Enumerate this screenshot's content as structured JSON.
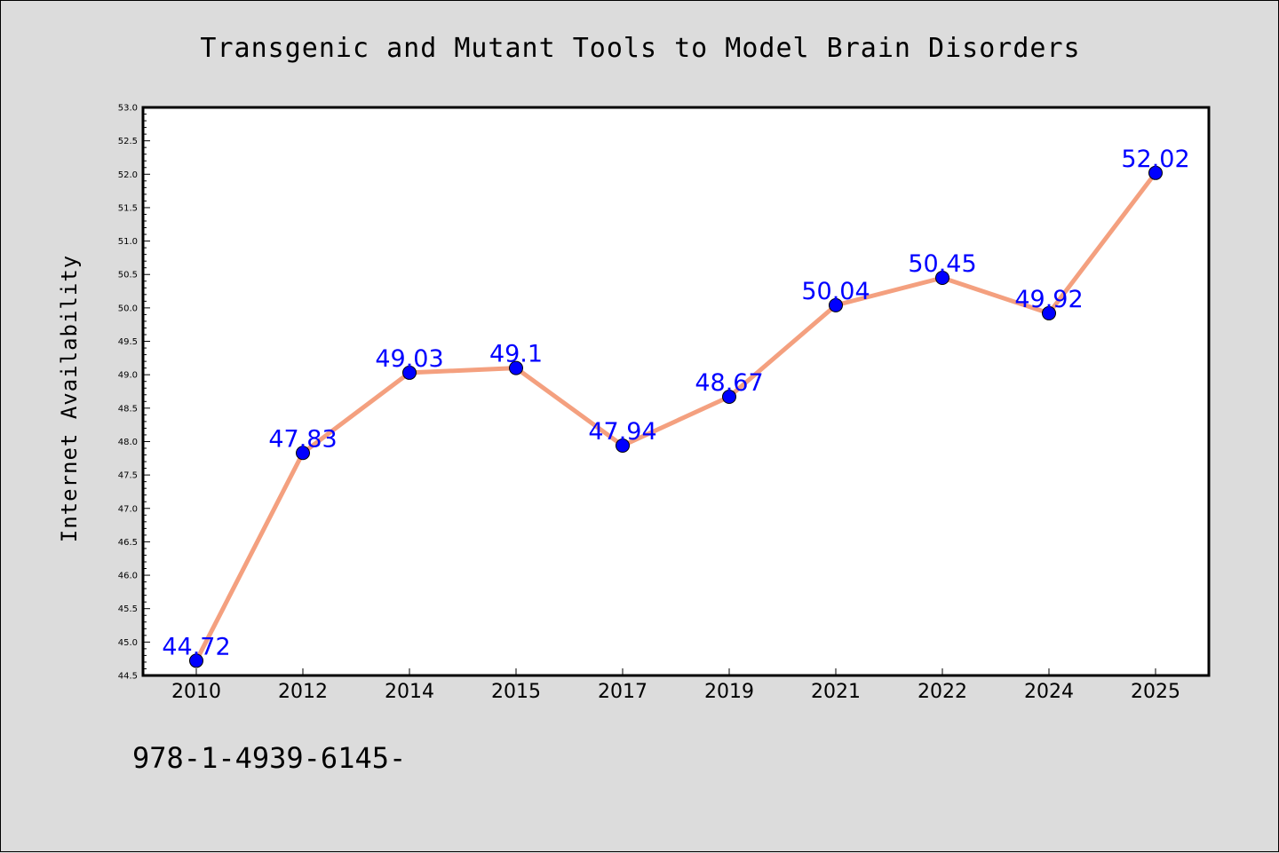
{
  "chart_data": {
    "type": "line",
    "title": "Transgenic and Mutant Tools to Model Brain Disorders",
    "xlabel": "",
    "ylabel": "Internet Availability",
    "categories": [
      "2010",
      "2012",
      "2014",
      "2015",
      "2017",
      "2019",
      "2021",
      "2022",
      "2024",
      "2025"
    ],
    "series": [
      {
        "values": [
          44.72,
          47.83,
          49.03,
          49.1,
          47.94,
          48.67,
          50.04,
          50.45,
          49.92,
          52.02
        ],
        "data_labels": [
          "44.72",
          "47.83",
          "49.03",
          "49.1",
          "47.94",
          "48.67",
          "50.04",
          "50.45",
          "49.92",
          "52.02"
        ]
      }
    ],
    "ylim": [
      44.5,
      53.0
    ],
    "yticks": [
      "44.5",
      "45.0",
      "45.5",
      "46.0",
      "46.5",
      "47.0",
      "47.5",
      "48.0",
      "48.5",
      "49.0",
      "49.5",
      "50.0",
      "50.5",
      "51.0",
      "51.5",
      "52.0",
      "52.5",
      "53.0"
    ],
    "grid": false,
    "legend": "none",
    "colors": {
      "line": "#f4a07f",
      "marker": "#0000ff",
      "label": "#0000ff",
      "background": "#dcdcdc",
      "plot_background": "#ffffff"
    }
  },
  "footer": {
    "isbn": "978-1-4939-6145-"
  }
}
